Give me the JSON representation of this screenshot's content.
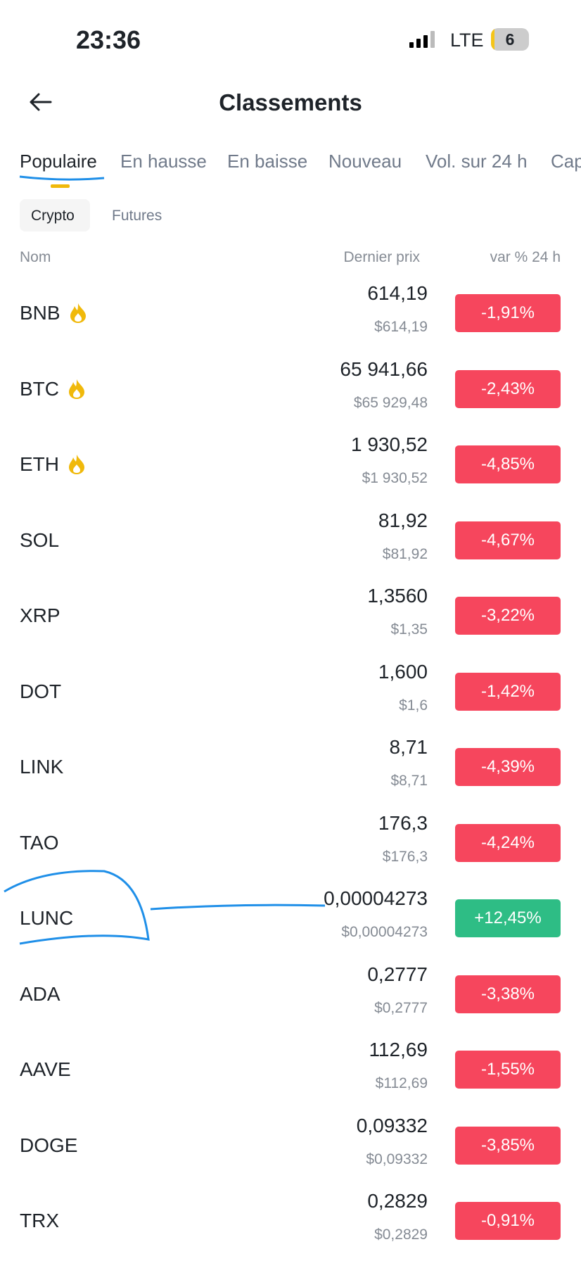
{
  "status_bar": {
    "time": "23:36",
    "network": "LTE",
    "battery": "6"
  },
  "header": {
    "title": "Classements"
  },
  "tabs": [
    "Populaire",
    "En hausse",
    "En baisse",
    "Nouveau",
    "Vol. sur 24 h",
    "Cap"
  ],
  "subtabs": [
    "Crypto",
    "Futures"
  ],
  "columns": {
    "name": "Nom",
    "price": "Dernier prix",
    "change": "var % 24 h"
  },
  "rows": [
    {
      "name": "BNB",
      "hot": true,
      "price": "614,19",
      "usd": "$614,19",
      "change": "-1,91%",
      "up": false
    },
    {
      "name": "BTC",
      "hot": true,
      "price": "65 941,66",
      "usd": "$65 929,48",
      "change": "-2,43%",
      "up": false
    },
    {
      "name": "ETH",
      "hot": true,
      "price": "1 930,52",
      "usd": "$1 930,52",
      "change": "-4,85%",
      "up": false
    },
    {
      "name": "SOL",
      "hot": false,
      "price": "81,92",
      "usd": "$81,92",
      "change": "-4,67%",
      "up": false
    },
    {
      "name": "XRP",
      "hot": false,
      "price": "1,3560",
      "usd": "$1,35",
      "change": "-3,22%",
      "up": false
    },
    {
      "name": "DOT",
      "hot": false,
      "price": "1,600",
      "usd": "$1,6",
      "change": "-1,42%",
      "up": false
    },
    {
      "name": "LINK",
      "hot": false,
      "price": "8,71",
      "usd": "$8,71",
      "change": "-4,39%",
      "up": false
    },
    {
      "name": "TAO",
      "hot": false,
      "price": "176,3",
      "usd": "$176,3",
      "change": "-4,24%",
      "up": false
    },
    {
      "name": "LUNC",
      "hot": false,
      "price": "0,00004273",
      "usd": "$0,00004273",
      "change": "+12,45%",
      "up": true
    },
    {
      "name": "ADA",
      "hot": false,
      "price": "0,2777",
      "usd": "$0,2777",
      "change": "-3,38%",
      "up": false
    },
    {
      "name": "AAVE",
      "hot": false,
      "price": "112,69",
      "usd": "$112,69",
      "change": "-1,55%",
      "up": false
    },
    {
      "name": "DOGE",
      "hot": false,
      "price": "0,09332",
      "usd": "$0,09332",
      "change": "-3,85%",
      "up": false
    },
    {
      "name": "TRX",
      "hot": false,
      "price": "0,2829",
      "usd": "$0,2829",
      "change": "-0,91%",
      "up": false
    }
  ]
}
